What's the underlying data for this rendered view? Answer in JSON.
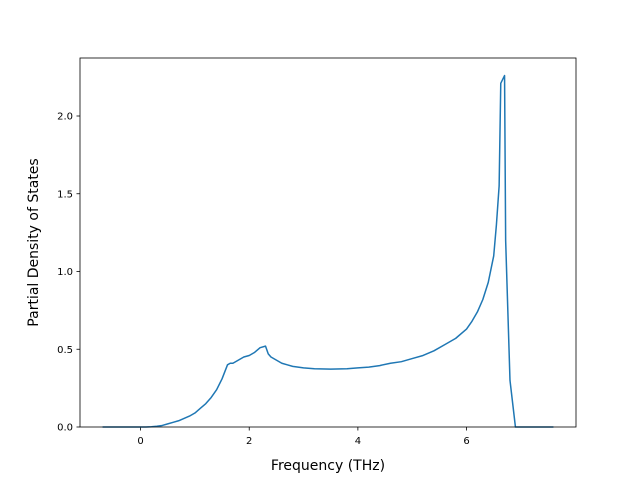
{
  "chart_data": {
    "type": "line",
    "xlabel": "Frequency (THz)",
    "ylabel": "Partial Density of States",
    "x": [
      -0.7,
      -0.4,
      -0.1,
      0.1,
      0.2,
      0.3,
      0.4,
      0.5,
      0.6,
      0.7,
      0.8,
      0.9,
      1.0,
      1.1,
      1.2,
      1.3,
      1.4,
      1.5,
      1.6,
      1.65,
      1.7,
      1.8,
      1.9,
      2.0,
      2.1,
      2.2,
      2.3,
      2.35,
      2.4,
      2.5,
      2.6,
      2.7,
      2.8,
      3.0,
      3.2,
      3.5,
      3.8,
      4.0,
      4.2,
      4.4,
      4.6,
      4.8,
      5.0,
      5.2,
      5.4,
      5.6,
      5.8,
      6.0,
      6.1,
      6.2,
      6.3,
      6.4,
      6.5,
      6.55,
      6.6,
      6.63,
      6.7,
      6.72,
      6.8,
      6.9,
      7.2,
      7.6
    ],
    "values": [
      0,
      0,
      0,
      0,
      0.002,
      0.005,
      0.01,
      0.02,
      0.03,
      0.04,
      0.055,
      0.07,
      0.09,
      0.12,
      0.15,
      0.19,
      0.24,
      0.31,
      0.4,
      0.41,
      0.41,
      0.43,
      0.45,
      0.46,
      0.48,
      0.51,
      0.52,
      0.47,
      0.45,
      0.43,
      0.41,
      0.4,
      0.39,
      0.38,
      0.375,
      0.372,
      0.375,
      0.38,
      0.385,
      0.395,
      0.41,
      0.42,
      0.44,
      0.46,
      0.49,
      0.53,
      0.57,
      0.63,
      0.68,
      0.74,
      0.82,
      0.93,
      1.1,
      1.3,
      1.55,
      2.21,
      2.26,
      1.2,
      0.3,
      0,
      0,
      0
    ],
    "color": "#1f77b4",
    "xlim": [
      -1.115,
      8.015
    ],
    "ylim": [
      0,
      2.373
    ],
    "xticks": [
      0,
      2,
      4,
      6
    ],
    "yticks": [
      {
        "value": 0,
        "label": "0.0"
      },
      {
        "value": 0.5,
        "label": "0.5"
      },
      {
        "value": 1,
        "label": "1.0"
      },
      {
        "value": 1.5,
        "label": "1.5"
      },
      {
        "value": 2,
        "label": "2.0"
      }
    ]
  }
}
